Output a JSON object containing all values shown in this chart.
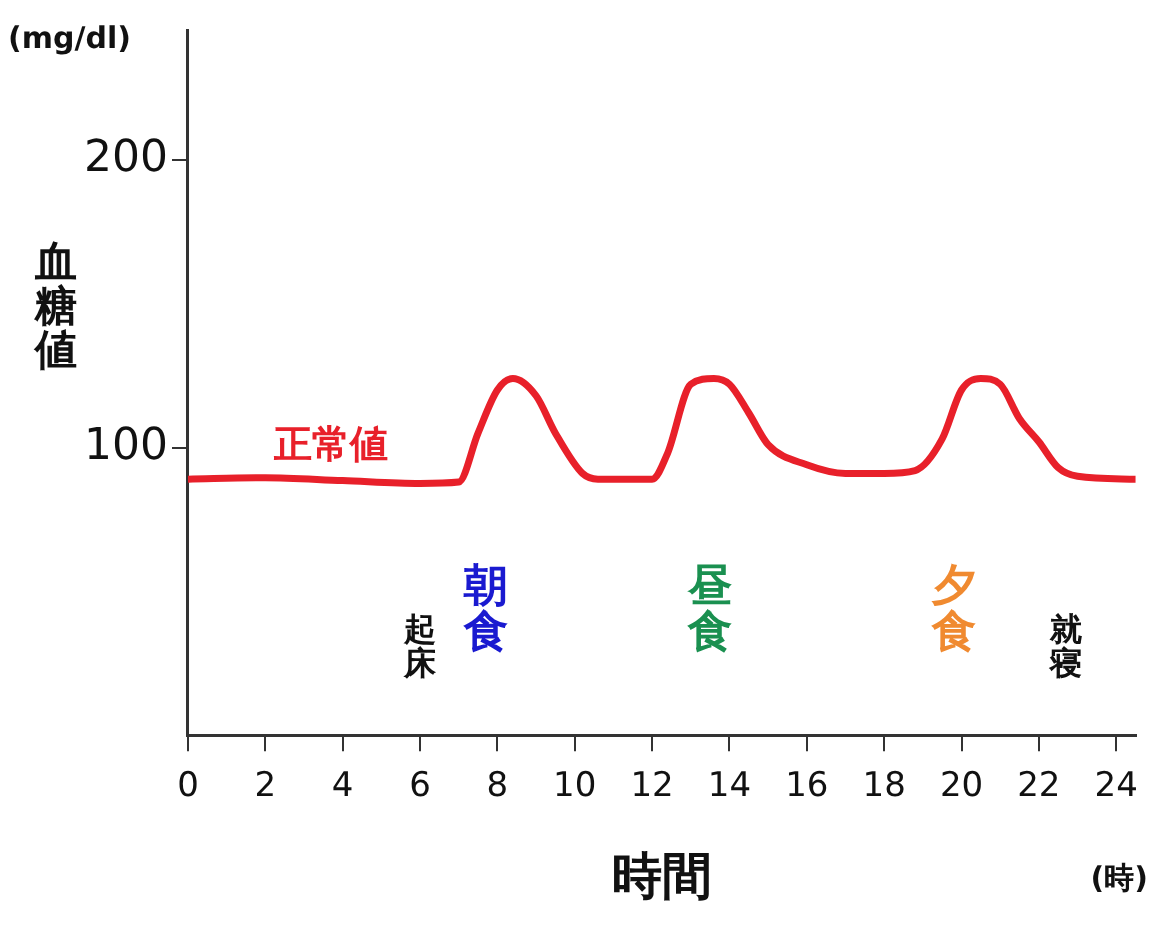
{
  "chart_data": {
    "type": "line",
    "xlabel": "時間",
    "ylabel": "血糖値",
    "x": [
      0,
      2,
      4,
      6,
      7,
      7.5,
      8,
      8.4,
      9,
      9.5,
      10.2,
      10.6,
      11,
      12,
      12.4,
      13,
      13.6,
      14,
      14.5,
      15,
      16,
      17,
      18,
      18.8,
      19.5,
      20,
      20.5,
      21,
      21.5,
      22,
      22.5,
      23,
      24.5
    ],
    "series": [
      {
        "color": "#e8202a",
        "values": [
          89,
          89.5,
          88.5,
          87.5,
          88,
          105,
          120,
          124,
          118,
          105,
          91,
          89,
          89,
          89,
          98,
          122,
          124,
          122,
          112,
          101,
          94,
          91,
          91,
          92,
          103,
          120,
          124,
          122,
          110,
          102,
          93,
          90,
          89
        ]
      }
    ],
    "xlim": [
      0,
      24.5
    ],
    "ylim": [
      0,
      245
    ],
    "xticks": [
      0,
      2,
      4,
      6,
      8,
      10,
      12,
      14,
      16,
      18,
      20,
      22,
      24
    ],
    "yticks": [
      100,
      200
    ],
    "grid": false,
    "legend": false,
    "marker": "none",
    "line_style": "solid",
    "annotations": [
      "(mg/dl)",
      "(時)",
      "正常値",
      "起床",
      "朝食",
      "昼食",
      "夕食",
      "就寝"
    ]
  }
}
